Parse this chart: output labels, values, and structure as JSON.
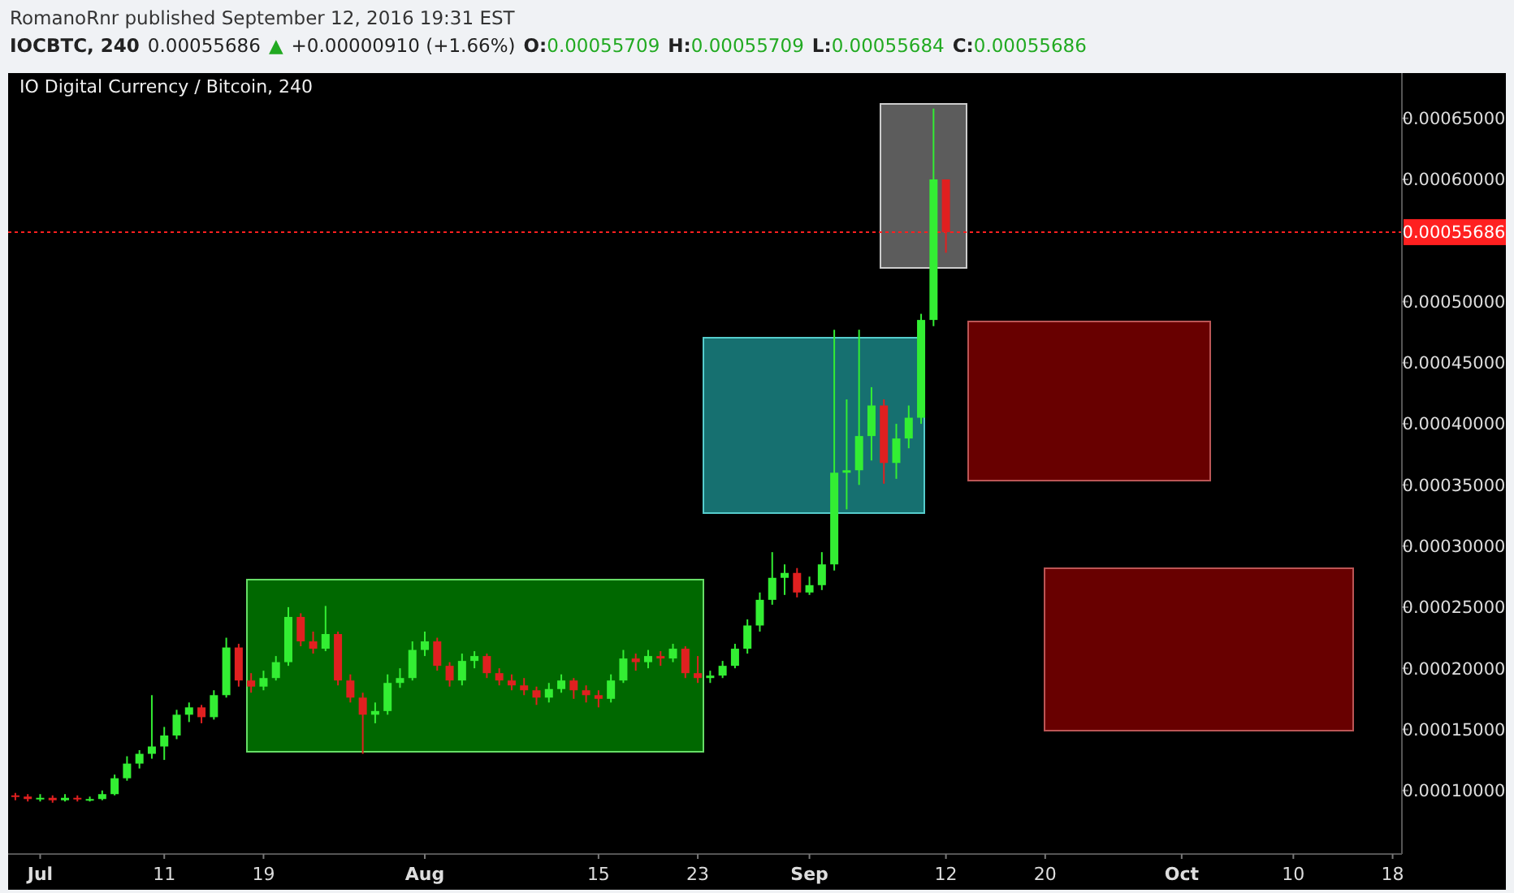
{
  "chart_data": {
    "type": "candlestick",
    "title": "IO Digital Currency / Bitcoin, 240",
    "annotations": [
      "RomanoRnr published September 12, 2016 19:31 EST",
      "IOCBTC, 240",
      "0.00055686",
      "▲",
      "+0.00000910 (+1.66%)",
      "O:0.00055709",
      "H:0.00055709",
      "L:0.00055684",
      "C:0.00055686"
    ],
    "x": [
      "2016-06-29",
      "2016-06-30",
      "2016-07-01",
      "2016-07-02",
      "2016-07-03",
      "2016-07-04",
      "2016-07-05",
      "2016-07-06",
      "2016-07-07",
      "2016-07-08",
      "2016-07-09",
      "2016-07-10",
      "2016-07-11",
      "2016-07-12",
      "2016-07-13",
      "2016-07-14",
      "2016-07-15",
      "2016-07-16",
      "2016-07-17",
      "2016-07-18",
      "2016-07-19",
      "2016-07-20",
      "2016-07-21",
      "2016-07-22",
      "2016-07-23",
      "2016-07-24",
      "2016-07-25",
      "2016-07-26",
      "2016-07-27",
      "2016-07-28",
      "2016-07-29",
      "2016-07-30",
      "2016-07-31",
      "2016-08-01",
      "2016-08-02",
      "2016-08-03",
      "2016-08-04",
      "2016-08-05",
      "2016-08-06",
      "2016-08-07",
      "2016-08-08",
      "2016-08-09",
      "2016-08-10",
      "2016-08-11",
      "2016-08-12",
      "2016-08-13",
      "2016-08-14",
      "2016-08-15",
      "2016-08-16",
      "2016-08-17",
      "2016-08-18",
      "2016-08-19",
      "2016-08-20",
      "2016-08-21",
      "2016-08-22",
      "2016-08-23",
      "2016-08-24",
      "2016-08-25",
      "2016-08-26",
      "2016-08-27",
      "2016-08-28",
      "2016-08-29",
      "2016-08-30",
      "2016-08-31",
      "2016-09-01",
      "2016-09-02",
      "2016-09-03",
      "2016-09-04",
      "2016-09-05",
      "2016-09-06",
      "2016-09-07",
      "2016-09-08",
      "2016-09-09",
      "2016-09-10",
      "2016-09-11",
      "2016-09-12"
    ],
    "ohlc": [
      [
        9.6e-05,
        9.8e-05,
        9.2e-05,
        9.5e-05
      ],
      [
        9.5e-05,
        9.7e-05,
        9.1e-05,
        9.3e-05
      ],
      [
        9.3e-05,
        9.7e-05,
        9.1e-05,
        9.4e-05
      ],
      [
        9.4e-05,
        9.6e-05,
        9e-05,
        9.2e-05
      ],
      [
        9.2e-05,
        9.7e-05,
        9.1e-05,
        9.4e-05
      ],
      [
        9.4e-05,
        9.6e-05,
        9.1e-05,
        9.3e-05
      ],
      [
        9.3e-05,
        9.5e-05,
        9.1e-05,
        9.3e-05
      ],
      [
        9.3e-05,
        0.0001,
        9.2e-05,
        9.7e-05
      ],
      [
        9.7e-05,
        0.000113,
        9.6e-05,
        0.00011
      ],
      [
        0.00011,
        0.000128,
        0.000108,
        0.000122
      ],
      [
        0.000122,
        0.000133,
        0.000118,
        0.00013
      ],
      [
        0.00013,
        0.000178,
        0.000126,
        0.000136
      ],
      [
        0.000136,
        0.000152,
        0.000125,
        0.000145
      ],
      [
        0.000145,
        0.000166,
        0.000142,
        0.000162
      ],
      [
        0.000162,
        0.000172,
        0.000156,
        0.000168
      ],
      [
        0.000168,
        0.00017,
        0.000155,
        0.00016
      ],
      [
        0.00016,
        0.000182,
        0.000158,
        0.000178
      ],
      [
        0.000178,
        0.000225,
        0.000176,
        0.000217
      ],
      [
        0.000217,
        0.00022,
        0.000185,
        0.00019
      ],
      [
        0.00019,
        0.000196,
        0.00018,
        0.000185
      ],
      [
        0.000185,
        0.000198,
        0.000182,
        0.000192
      ],
      [
        0.000192,
        0.00021,
        0.00019,
        0.000205
      ],
      [
        0.000205,
        0.00025,
        0.000202,
        0.000242
      ],
      [
        0.000242,
        0.000245,
        0.000218,
        0.000222
      ],
      [
        0.000222,
        0.00023,
        0.000212,
        0.000216
      ],
      [
        0.000216,
        0.000251,
        0.000214,
        0.000228
      ],
      [
        0.000228,
        0.00023,
        0.000186,
        0.00019
      ],
      [
        0.00019,
        0.000195,
        0.000172,
        0.000176
      ],
      [
        0.000176,
        0.00018,
        0.00013,
        0.000162
      ],
      [
        0.000162,
        0.000172,
        0.000155,
        0.000165
      ],
      [
        0.000165,
        0.000195,
        0.000162,
        0.000188
      ],
      [
        0.000188,
        0.0002,
        0.000184,
        0.000192
      ],
      [
        0.000192,
        0.000222,
        0.00019,
        0.000215
      ],
      [
        0.000215,
        0.00023,
        0.00021,
        0.000222
      ],
      [
        0.000222,
        0.000225,
        0.000198,
        0.000202
      ],
      [
        0.000202,
        0.000205,
        0.000185,
        0.00019
      ],
      [
        0.00019,
        0.000212,
        0.000186,
        0.000206
      ],
      [
        0.000206,
        0.000214,
        0.0002,
        0.00021
      ],
      [
        0.00021,
        0.000212,
        0.000192,
        0.000196
      ],
      [
        0.000196,
        0.0002,
        0.000186,
        0.00019
      ],
      [
        0.00019,
        0.000195,
        0.000182,
        0.000186
      ],
      [
        0.000186,
        0.000192,
        0.000178,
        0.000182
      ],
      [
        0.000182,
        0.000185,
        0.00017,
        0.000176
      ],
      [
        0.000176,
        0.000188,
        0.000172,
        0.000183
      ],
      [
        0.000183,
        0.000195,
        0.00018,
        0.00019
      ],
      [
        0.00019,
        0.000192,
        0.000175,
        0.000182
      ],
      [
        0.000182,
        0.000186,
        0.000172,
        0.000178
      ],
      [
        0.000178,
        0.000182,
        0.000168,
        0.000175
      ],
      [
        0.000175,
        0.000195,
        0.000172,
        0.00019
      ],
      [
        0.00019,
        0.000215,
        0.000188,
        0.000208
      ],
      [
        0.000208,
        0.000212,
        0.000198,
        0.000205
      ],
      [
        0.000205,
        0.000215,
        0.0002,
        0.00021
      ],
      [
        0.00021,
        0.000214,
        0.000202,
        0.000208
      ],
      [
        0.000208,
        0.00022,
        0.000205,
        0.000216
      ],
      [
        0.000216,
        0.000218,
        0.000192,
        0.000196
      ],
      [
        0.000196,
        0.00021,
        0.000188,
        0.000192
      ],
      [
        0.000192,
        0.000198,
        0.000188,
        0.000194
      ],
      [
        0.000194,
        0.000206,
        0.000192,
        0.000202
      ],
      [
        0.000202,
        0.00022,
        0.0002,
        0.000216
      ],
      [
        0.000216,
        0.00024,
        0.000212,
        0.000235
      ],
      [
        0.000235,
        0.000262,
        0.00023,
        0.000256
      ],
      [
        0.000256,
        0.000295,
        0.000252,
        0.000274
      ],
      [
        0.000274,
        0.000285,
        0.00026,
        0.000278
      ],
      [
        0.000278,
        0.000282,
        0.000258,
        0.000262
      ],
      [
        0.000262,
        0.000275,
        0.00026,
        0.000268
      ],
      [
        0.000268,
        0.000295,
        0.000264,
        0.000285
      ],
      [
        0.000285,
        0.000477,
        0.00028,
        0.00036
      ],
      [
        0.00036,
        0.00042,
        0.00033,
        0.000362
      ],
      [
        0.000362,
        0.000477,
        0.00035,
        0.00039
      ],
      [
        0.00039,
        0.00043,
        0.00037,
        0.000415
      ],
      [
        0.000415,
        0.00042,
        0.000351,
        0.000368
      ],
      [
        0.000368,
        0.0004,
        0.000355,
        0.000388
      ],
      [
        0.000388,
        0.000415,
        0.00038,
        0.000405
      ],
      [
        0.000405,
        0.00049,
        0.0004,
        0.000485
      ],
      [
        0.000485,
        0.000658,
        0.00048,
        0.0006
      ],
      [
        0.0006,
        0.0006,
        0.00054,
        0.00055686
      ]
    ],
    "xlim": [
      "2016-06-28T10:00",
      "2016-10-18T18:00"
    ],
    "xticks": [
      {
        "value": "2016-07-01",
        "label": "Jul"
      },
      {
        "value": "2016-07-11",
        "label": "11"
      },
      {
        "value": "2016-07-19",
        "label": "19"
      },
      {
        "value": "2016-08-01",
        "label": "Aug"
      },
      {
        "value": "2016-08-15",
        "label": "15"
      },
      {
        "value": "2016-08-23",
        "label": "23"
      },
      {
        "value": "2016-09-01",
        "label": "Sep"
      },
      {
        "value": "2016-09-12",
        "label": "12"
      },
      {
        "value": "2016-09-20",
        "label": "20"
      },
      {
        "value": "2016-10-01",
        "label": "Oct"
      },
      {
        "value": "2016-10-10",
        "label": "10"
      },
      {
        "value": "2016-10-18",
        "label": "18"
      }
    ],
    "ylim": [
      4.8e-05,
      0.000687
    ],
    "yticks": [
      {
        "value": 0.0001,
        "label": "0.00010000"
      },
      {
        "value": 0.00015,
        "label": "0.00015000"
      },
      {
        "value": 0.0002,
        "label": "0.00020000"
      },
      {
        "value": 0.00025,
        "label": "0.00025000"
      },
      {
        "value": 0.0003,
        "label": "0.00030000"
      },
      {
        "value": 0.00035,
        "label": "0.00035000"
      },
      {
        "value": 0.0004,
        "label": "0.00040000"
      },
      {
        "value": 0.00045,
        "label": "0.00045000"
      },
      {
        "value": 0.0005,
        "label": "0.00050000"
      },
      {
        "value": 0.0006,
        "label": "0.00060000"
      },
      {
        "value": 0.00065,
        "label": "0.00065000"
      }
    ],
    "ref_lines": [
      {
        "axis": "y",
        "value": 0.00055686,
        "label": "0.00055686",
        "color": "#ff2020",
        "line_style": "dotted"
      }
    ]
  }
}
